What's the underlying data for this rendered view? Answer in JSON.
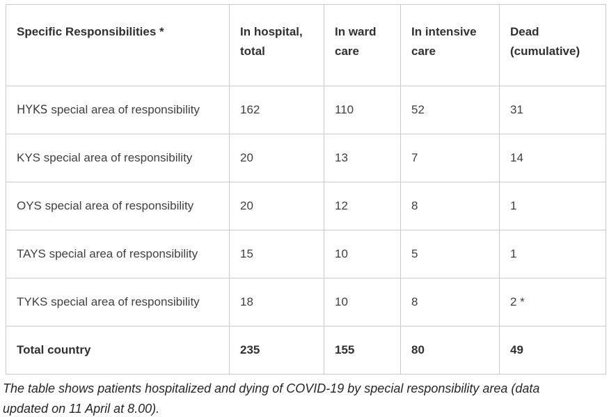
{
  "colors": {
    "background": "#ffffff",
    "border": "#cbcbcb",
    "header_text": "#303030",
    "body_text": "#3f3f3f",
    "caption_text": "#262626"
  },
  "table": {
    "columns": [
      "Specific Responsibilities *",
      "In hospital, total",
      "In ward care",
      "In intensive care",
      "Dead (cumulative)"
    ],
    "rows": [
      {
        "label_code": "HYKS",
        "label": "special area of responsibility",
        "in_hospital_total": "162",
        "in_ward_care": "110",
        "in_intensive_care": "52",
        "dead_cumulative": "31"
      },
      {
        "label": "KYS special area of responsibility",
        "in_hospital_total": "20",
        "in_ward_care": "13",
        "in_intensive_care": "7",
        "dead_cumulative": "14"
      },
      {
        "label": "OYS special area of responsibility",
        "in_hospital_total": "20",
        "in_ward_care": "12",
        "in_intensive_care": "8",
        "dead_cumulative": "1"
      },
      {
        "label": "TAYS special area of responsibility",
        "in_hospital_total": "15",
        "in_ward_care": "10",
        "in_intensive_care": "5",
        "dead_cumulative": "1"
      },
      {
        "label": "TYKS special area of responsibility",
        "in_hospital_total": "18",
        "in_ward_care": "10",
        "in_intensive_care": "8",
        "dead_cumulative": "2 *"
      },
      {
        "label": "Total country",
        "in_hospital_total": "235",
        "in_ward_care": "155",
        "in_intensive_care": "80",
        "dead_cumulative": "49"
      }
    ]
  },
  "caption": "The table shows patients hospitalized and dying of COVID-19 by special responsibility area (data updated on 11 April at 8.00).",
  "chart_data": {
    "type": "table",
    "columns": [
      "Specific Responsibilities *",
      "In hospital, total",
      "In ward care",
      "In intensive care",
      "Dead (cumulative)"
    ],
    "rows": [
      [
        "HYKS special area of responsibility",
        162,
        110,
        52,
        31
      ],
      [
        "KYS special area of responsibility",
        20,
        13,
        7,
        14
      ],
      [
        "OYS special area of responsibility",
        20,
        12,
        8,
        1
      ],
      [
        "TAYS special area of responsibility",
        15,
        10,
        5,
        1
      ],
      [
        "TYKS special area of responsibility",
        18,
        10,
        8,
        "2 *"
      ],
      [
        "Total country",
        235,
        155,
        80,
        49
      ]
    ],
    "caption": "The table shows patients hospitalized and dying of COVID-19 by special responsibility area (data updated on 11 April at 8.00)."
  }
}
